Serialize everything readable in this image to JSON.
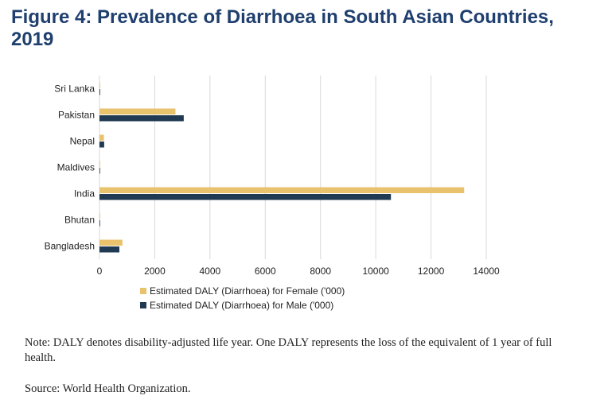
{
  "figure": {
    "title": "Figure 4: Prevalence of Diarrhoea in South Asian Countries, 2019",
    "note": "Note: DALY denotes disability-adjusted life year. One DALY represents the loss of the equivalent of 1 year of full health.",
    "source": "Source: World Health Organization."
  },
  "colors": {
    "title": "#1f3f6e",
    "female": "#e8c26c",
    "male": "#1f3a52",
    "grid": "#d9d9d9"
  },
  "chart_data": {
    "type": "bar",
    "orientation": "horizontal",
    "title": "Figure 4: Prevalence of Diarrhoea in South Asian Countries, 2019",
    "xlabel": "",
    "ylabel": "",
    "categories": [
      "Sri Lanka",
      "Pakistan",
      "Nepal",
      "Maldives",
      "India",
      "Bhutan",
      "Bangladesh"
    ],
    "series": [
      {
        "name": "Estimated DALY (Diarrhoea) for Female ('000)",
        "color": "#e8c26c",
        "values": [
          20,
          2750,
          160,
          3,
          13200,
          8,
          830
        ]
      },
      {
        "name": "Estimated DALY (Diarrhoea) for Male ('000)",
        "color": "#1f3a52",
        "values": [
          25,
          3050,
          170,
          4,
          10550,
          10,
          720
        ]
      }
    ],
    "xlim": [
      0,
      14000
    ],
    "xticks": [
      0,
      2000,
      4000,
      6000,
      8000,
      10000,
      12000,
      14000
    ],
    "xtick_labels": [
      "0",
      "2000",
      "4000",
      "6000",
      "8000",
      "10000",
      "12000",
      "14000"
    ],
    "grid": "vertical",
    "legend_position": "bottom"
  }
}
